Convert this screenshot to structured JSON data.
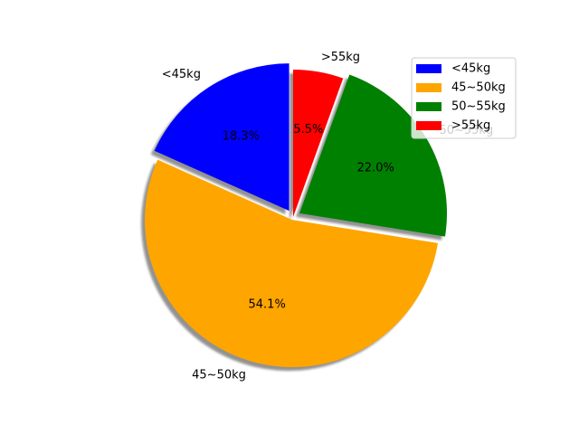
{
  "chart_data": {
    "type": "pie",
    "categories": [
      "<45kg",
      "45~50kg",
      "50~55kg",
      ">55kg"
    ],
    "values": [
      18.3,
      54.1,
      22.0,
      5.5
    ],
    "percent_labels": [
      "18.3%",
      "54.1%",
      "22.0%",
      "5.5%"
    ],
    "colors": [
      "#0000ff",
      "#ffa500",
      "#008000",
      "#ff0000"
    ],
    "explode": [
      0.05,
      0.02,
      0.05,
      0
    ],
    "shadow": true,
    "start_angle_deg": 90,
    "direction": "counterclockwise",
    "legend": {
      "position": "top-right",
      "entries": [
        "<45kg",
        "45~50kg",
        "50~55kg",
        ">55kg"
      ]
    },
    "title": ""
  }
}
